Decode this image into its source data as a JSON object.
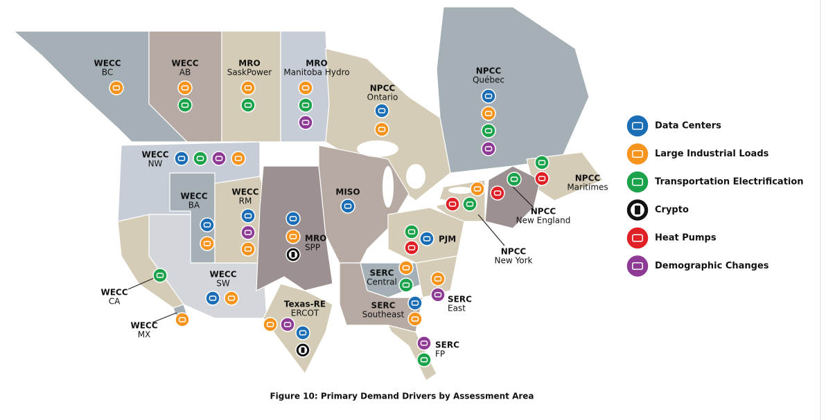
{
  "map": {
    "regions": [
      {
        "org": "WECC",
        "name": "BC"
      },
      {
        "org": "WECC",
        "name": "AB"
      },
      {
        "org": "MRO",
        "name": "SaskPower"
      },
      {
        "org": "MRO",
        "name": "Manitoba Hydro"
      },
      {
        "org": "NPCC",
        "name": "Ontario"
      },
      {
        "org": "NPCC",
        "name": "Québec"
      },
      {
        "org": "WECC",
        "name": "NW"
      },
      {
        "org": "WECC",
        "name": "BA"
      },
      {
        "org": "WECC",
        "name": "RM"
      },
      {
        "org": "MISO"
      },
      {
        "org": "MRO",
        "name": "SPP"
      },
      {
        "org": "WECC",
        "name": "SW"
      },
      {
        "org": "WECC",
        "name": "CA"
      },
      {
        "org": "WECC",
        "name": "MX"
      },
      {
        "org": "Texas-RE",
        "name": "ERCOT"
      },
      {
        "org": "PJM"
      },
      {
        "org": "SERC",
        "name": "Central"
      },
      {
        "org": "SERC",
        "name": "Southeast"
      },
      {
        "org": "SERC",
        "name": "East"
      },
      {
        "org": "SERC",
        "name": "FP"
      },
      {
        "org": "NPCC",
        "name": "New York"
      },
      {
        "org": "NPCC",
        "name": "New England"
      },
      {
        "org": "NPCC",
        "name": "Maritimes"
      }
    ]
  },
  "legend": {
    "items": [
      {
        "label": "Data Centers",
        "color": "#1b6db5"
      },
      {
        "label": "Large Industrial Loads",
        "color": "#f7941d"
      },
      {
        "label": "Transportation Electrification",
        "color": "#1aa34a"
      },
      {
        "label": "Crypto",
        "color": "#111111"
      },
      {
        "label": "Heat Pumps",
        "color": "#e02027"
      },
      {
        "label": "Demographic Changes",
        "color": "#8e3b96"
      }
    ]
  },
  "caption": "Figure 10: Primary Demand Drivers by Assessment Area"
}
